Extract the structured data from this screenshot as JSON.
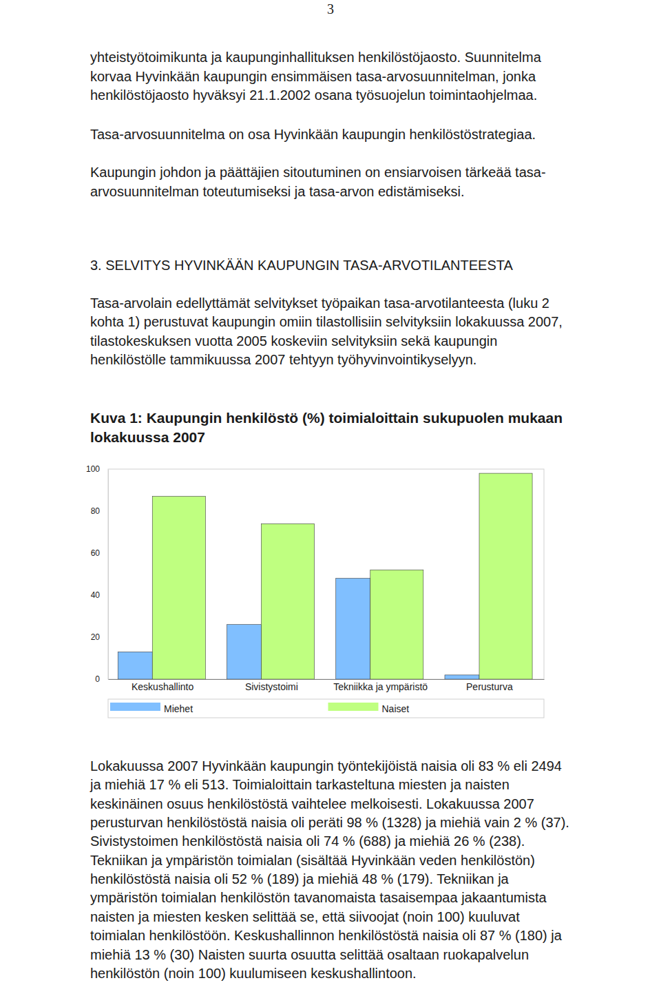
{
  "page_number": "3",
  "intro_paragraphs": [
    {
      "lines": [
        "yhteistyötoimikunta ja kaupunginhallituksen henkilöstöjaosto. Suunnitelma",
        "korvaa Hyvinkään kaupungin ensimmäisen tasa-arvosuunnitelman, jonka",
        "henkilöstöjaosto hyväksyi 21.1.2002 osana työsuojelun toimintaohjelmaa."
      ]
    },
    {
      "lines": [
        "Tasa-arvosuunnitelma on osa Hyvinkään kaupungin henkilöstöstrategiaa."
      ]
    },
    {
      "lines": [
        "Kaupungin johdon ja päättäjien sitoutuminen on ensiarvoisen tärkeää tasa-",
        "arvosuunnitelman toteutumiseksi ja tasa-arvon edistämiseksi."
      ]
    }
  ],
  "heading": "3. SELVITYS HYVINKÄÄN KAUPUNGIN TASA-ARVOTILANTEESTA",
  "body_paragraph": {
    "lines": [
      "Tasa-arvolain edellyttämät selvitykset työpaikan tasa-arvotilanteesta (luku 2",
      "kohta 1) perustuvat kaupungin omiin tilastollisiin selvityksiin lokakuussa 2007,",
      "tilastokeskuksen vuotta 2005 koskeviin selvityksiin sekä kaupungin",
      "henkilöstölle tammikuussa 2007 tehtyyn työhyvinvointikyselyyn."
    ]
  },
  "figure_title": {
    "lines": [
      "Kuva 1: Kaupungin henkilöstö (%) toimialoittain sukupuolen mukaan",
      "lokakuussa 2007"
    ]
  },
  "chart_data": {
    "type": "bar",
    "categories": [
      "Keskushallinto",
      "Sivistystoimi",
      "Tekniikka ja ympäristö",
      "Perusturva"
    ],
    "series": [
      {
        "name": "Miehet",
        "color": "#80bfff",
        "values": [
          13,
          26,
          48,
          2
        ]
      },
      {
        "name": "Naiset",
        "color": "#bfff80",
        "values": [
          87,
          74,
          52,
          98
        ]
      }
    ],
    "ylim": [
      0,
      100
    ],
    "yticks": [
      0,
      20,
      40,
      60,
      80,
      100
    ],
    "legend": "bottom"
  },
  "closing_paragraph": {
    "lines": [
      "Lokakuussa 2007 Hyvinkään kaupungin työntekijöistä naisia oli 83 % eli 2494",
      "ja miehiä 17 % eli 513. Toimialoittain tarkasteltuna miesten ja naisten",
      "keskinäinen osuus henkilöstöstä vaihtelee melkoisesti. Lokakuussa 2007",
      "perusturvan henkilöstöstä naisia oli peräti 98 % (1328) ja miehiä vain 2 % (37).",
      "Sivistystoimen henkilöstöstä naisia oli 74 % (688) ja miehiä 26 % (238).",
      "Tekniikan ja ympäristön toimialan (sisältää Hyvinkään veden henkilöstön)",
      "henkilöstöstä naisia oli 52 % (189) ja miehiä 48 % (179). Tekniikan ja",
      "ympäristön toimialan henkilöstön tavanomaista tasaisempaa jakaantumista",
      "naisten ja miesten kesken selittää se, että siivoojat (noin 100) kuuluvat",
      "toimialan henkilöstöön. Keskushallinnon henkilöstöstä naisia oli 87 % (180) ja",
      "miehiä 13 % (30) Naisten suurta osuutta selittää osaltaan ruokapalvelun",
      "henkilöstön (noin 100) kuulumiseen keskushallintoon."
    ]
  }
}
